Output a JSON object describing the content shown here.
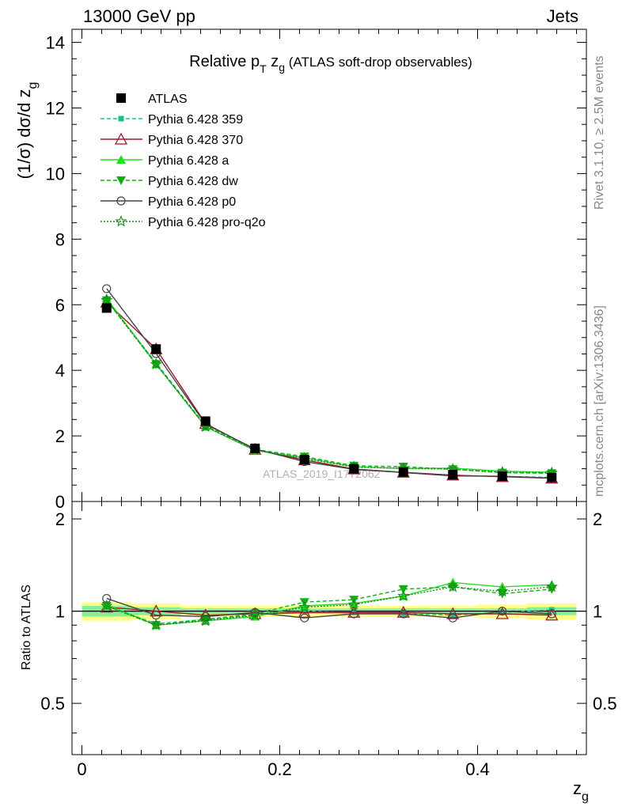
{
  "header": {
    "left": "13000 GeV pp",
    "right": "Jets"
  },
  "side_text": {
    "rivet": "Rivet 3.1.10, ≥ 2.5M events",
    "mcplots": "mcplots.cern.ch [arXiv:1306.3436]"
  },
  "watermark": "ATLAS_2019_I1772062",
  "chart_data": {
    "type": "line",
    "title": "Relative p_T z_g (ATLAS soft-drop observables)",
    "title_main": "Relative p",
    "title_sub": "T",
    "title_var": " z",
    "title_var_sub": "g",
    "title_rest": " (ATLAS soft-drop observables)",
    "ylabel_main": "(1/σ) dσ/d z",
    "ylabel_sub": "g",
    "ylabel_ratio": "Ratio to ATLAS",
    "xlabel_main": "z",
    "xlabel_sub": "g",
    "xlim": [
      -0.01,
      0.51
    ],
    "ylim_main": [
      0,
      14.4
    ],
    "ylim_ratio": [
      0.34,
      2.28
    ],
    "x_ticks": [
      "0",
      "0.2",
      "0.4"
    ],
    "y_ticks_main": [
      "0",
      "2",
      "4",
      "6",
      "8",
      "10",
      "12",
      "14"
    ],
    "y_ticks_ratio": [
      "0.5",
      "1",
      "2"
    ],
    "x": [
      0.025,
      0.075,
      0.125,
      0.175,
      0.225,
      0.275,
      0.325,
      0.375,
      0.425,
      0.475
    ],
    "bin_width": 0.05,
    "data": {
      "name": "ATLAS",
      "values": [
        5.9,
        4.65,
        2.45,
        1.62,
        1.28,
        1.0,
        0.9,
        0.82,
        0.77,
        0.73
      ],
      "band_inner": [
        0.04,
        0.03,
        0.02,
        0.02,
        0.02,
        0.02,
        0.02,
        0.02,
        0.02,
        0.03
      ],
      "band_outer": [
        0.07,
        0.06,
        0.04,
        0.04,
        0.04,
        0.04,
        0.04,
        0.04,
        0.05,
        0.06
      ]
    },
    "series": [
      {
        "name": "Pythia 6.428 359",
        "color": "#19c38a",
        "dash": "5,3",
        "marker": "square-small",
        "ratio": [
          1.04,
          0.91,
          0.94,
          0.97,
          1.0,
          0.99,
          0.98,
          0.97,
          0.99,
          1.01
        ]
      },
      {
        "name": "Pythia 6.428 370",
        "color": "#a0172a",
        "dash": "",
        "marker": "triangle-open",
        "ratio": [
          1.03,
          1.0,
          0.97,
          0.98,
          0.99,
          0.99,
          0.99,
          0.98,
          0.98,
          0.97
        ]
      },
      {
        "name": "Pythia 6.428 a",
        "color": "#22dd22",
        "dash": "",
        "marker": "triangle-filled",
        "ratio": [
          1.05,
          0.9,
          0.93,
          0.96,
          1.04,
          1.06,
          1.12,
          1.24,
          1.2,
          1.22
        ]
      },
      {
        "name": "Pythia 6.428 dw",
        "color": "#10b010",
        "dash": "5,3",
        "marker": "triangle-down",
        "ratio": [
          1.04,
          0.9,
          0.94,
          0.98,
          1.07,
          1.09,
          1.18,
          1.2,
          1.14,
          1.18
        ]
      },
      {
        "name": "Pythia 6.428 p0",
        "color": "#444444",
        "dash": "",
        "marker": "circle-open",
        "ratio": [
          1.1,
          0.97,
          0.96,
          0.99,
          0.95,
          0.98,
          0.98,
          0.95,
          1.0,
          0.98
        ]
      },
      {
        "name": "Pythia 6.428 pro-q2o",
        "color": "#1a8a1a",
        "dash": "2,2",
        "marker": "star",
        "ratio": [
          1.04,
          0.9,
          0.93,
          0.97,
          1.03,
          1.05,
          1.12,
          1.2,
          1.16,
          1.2
        ]
      }
    ]
  }
}
